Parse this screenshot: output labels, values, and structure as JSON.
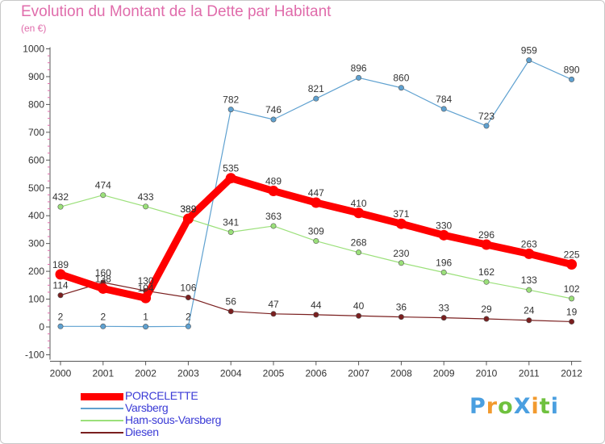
{
  "title": "Evolution du Montant de la Dette par Habitant",
  "subtitle": "(en €)",
  "brand": "ProXiti",
  "chart_data": {
    "type": "line",
    "title": "Evolution du Montant de la Dette par Habitant",
    "subtitle": "(en €)",
    "x": [
      "2000",
      "2001",
      "2002",
      "2003",
      "2004",
      "2005",
      "2006",
      "2007",
      "2008",
      "2009",
      "2010",
      "2011",
      "2012"
    ],
    "ylim": [
      -100,
      1000
    ],
    "yticks": [
      "-100",
      "0",
      "100",
      "200",
      "300",
      "400",
      "500",
      "600",
      "700",
      "800",
      "900",
      "1000"
    ],
    "grid": false,
    "legend_position": "bottom-left",
    "series": [
      {
        "name": "PORCELETTE",
        "color": "#ff0000",
        "values": [
          189,
          138,
          104,
          389,
          535,
          489,
          447,
          410,
          371,
          330,
          296,
          263,
          225
        ],
        "labels": [
          "189",
          "138",
          "104",
          "389",
          "535",
          "489",
          "447",
          "410",
          "371",
          "330",
          "296",
          "263",
          "225"
        ]
      },
      {
        "name": "Varsberg",
        "color": "#5fa1d0",
        "values": [
          2,
          2,
          1,
          2,
          782,
          746,
          821,
          896,
          860,
          784,
          723,
          959,
          890
        ],
        "labels": [
          "2",
          "2",
          "1",
          "2",
          "782",
          "746",
          "821",
          "896",
          "860",
          "784",
          "723",
          "959",
          "890"
        ]
      },
      {
        "name": "Ham-sous-Varsberg",
        "color": "#9be07a",
        "values": [
          432,
          474,
          433,
          389,
          341,
          363,
          309,
          268,
          230,
          196,
          162,
          133,
          102
        ],
        "labels": [
          "432",
          "474",
          "433",
          "389",
          "341",
          "363",
          "309",
          "268",
          "230",
          "196",
          "162",
          "133",
          "102"
        ]
      },
      {
        "name": "Diesen",
        "color": "#7a1f1f",
        "values": [
          114,
          160,
          130,
          106,
          56,
          47,
          44,
          40,
          36,
          33,
          29,
          24,
          19
        ],
        "labels": [
          "114",
          "160",
          "130",
          "106",
          "56",
          "47",
          "44",
          "40",
          "36",
          "33",
          "29",
          "24",
          "19"
        ]
      }
    ]
  }
}
